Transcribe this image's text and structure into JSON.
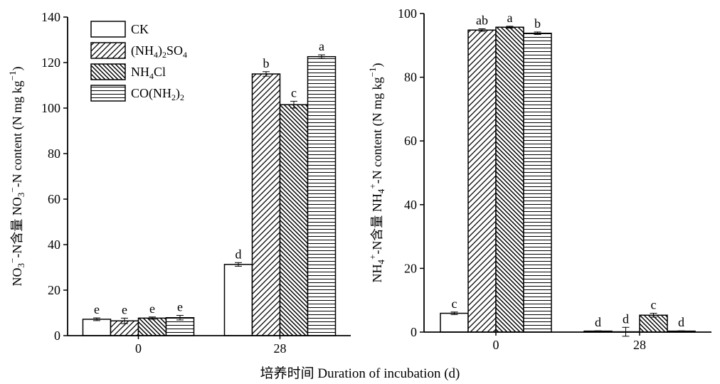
{
  "figure": {
    "xlabel": "培养时间 Duration of incubation (d)"
  },
  "legend": [
    {
      "label": "CK",
      "pattern": "empty"
    },
    {
      "label": "(NH4)2SO4",
      "pattern": "diag-right"
    },
    {
      "label": "NH4Cl",
      "pattern": "diag-left"
    },
    {
      "label": "CO(NH2)2",
      "pattern": "horizontal"
    }
  ],
  "chart_data": [
    {
      "type": "bar",
      "ylabel": "NO3−-N含量 NO3−-N content (N mg kg−1)",
      "ylim": [
        0,
        140
      ],
      "yticks": [
        0,
        20,
        40,
        60,
        80,
        100,
        120,
        140
      ],
      "categories": [
        "0",
        "28"
      ],
      "series": [
        {
          "name": "CK",
          "values": [
            7.2,
            31.3
          ],
          "errors": [
            0.6,
            0.8
          ],
          "letters": [
            "e",
            "d"
          ]
        },
        {
          "name": "(NH4)2SO4",
          "values": [
            6.5,
            115.0
          ],
          "errors": [
            1.2,
            1.0
          ],
          "letters": [
            "e",
            "b"
          ]
        },
        {
          "name": "NH4Cl",
          "values": [
            7.7,
            101.5
          ],
          "errors": [
            0.5,
            1.5
          ],
          "letters": [
            "e",
            "c"
          ]
        },
        {
          "name": "CO(NH2)2",
          "values": [
            7.9,
            122.6
          ],
          "errors": [
            1.0,
            0.8
          ],
          "letters": [
            "e",
            "a"
          ]
        }
      ]
    },
    {
      "type": "bar",
      "ylabel": "NH4+-N含量 NH4+-N content (N mg kg−1)",
      "ylim": [
        0,
        100
      ],
      "yticks": [
        0,
        20,
        40,
        60,
        80,
        100
      ],
      "categories": [
        "0",
        "28"
      ],
      "series": [
        {
          "name": "CK",
          "values": [
            5.9,
            0.3
          ],
          "errors": [
            0.4,
            0.1
          ],
          "letters": [
            "c",
            "d"
          ]
        },
        {
          "name": "(NH4)2SO4",
          "values": [
            94.8,
            0.1
          ],
          "errors": [
            0.4,
            1.4
          ],
          "letters": [
            "ab",
            "d"
          ]
        },
        {
          "name": "NH4Cl",
          "values": [
            95.7,
            5.3
          ],
          "errors": [
            0.3,
            0.6
          ],
          "letters": [
            "a",
            "c"
          ]
        },
        {
          "name": "CO(NH2)2",
          "values": [
            93.8,
            0.3
          ],
          "errors": [
            0.4,
            0.1
          ],
          "letters": [
            "b",
            "d"
          ]
        }
      ]
    }
  ]
}
